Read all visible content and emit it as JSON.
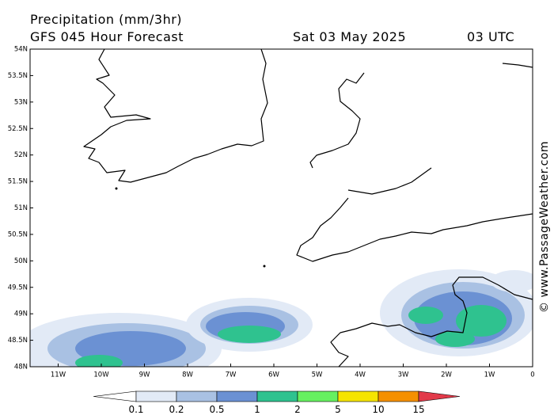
{
  "header": {
    "title": "Precipitation (mm/3hr)",
    "subtitle": "GFS 045 Hour Forecast",
    "date": "Sat 03 May 2025",
    "time": "03 UTC"
  },
  "map": {
    "lat_labels": [
      "54N",
      "53.5N",
      "53N",
      "52.5N",
      "52N",
      "51.5N",
      "51N",
      "50.5N",
      "50N",
      "49.5N",
      "49N",
      "48.5N",
      "48N"
    ],
    "lon_labels": [
      "11W",
      "10W",
      "9W",
      "8W",
      "7W",
      "6W",
      "5W",
      "4W",
      "3W",
      "2W",
      "1W",
      "0"
    ]
  },
  "colorbar": {
    "levels": [
      0.1,
      0.2,
      0.5,
      1,
      2,
      5,
      10,
      15
    ],
    "colors": [
      "#e2eaf6",
      "#a9c1e3",
      "#6b91d3",
      "#2fc28f",
      "#66f060",
      "#f5e400",
      "#f59000",
      "#e23a4a"
    ]
  },
  "watermark": "© www.PassageWeather.com"
}
